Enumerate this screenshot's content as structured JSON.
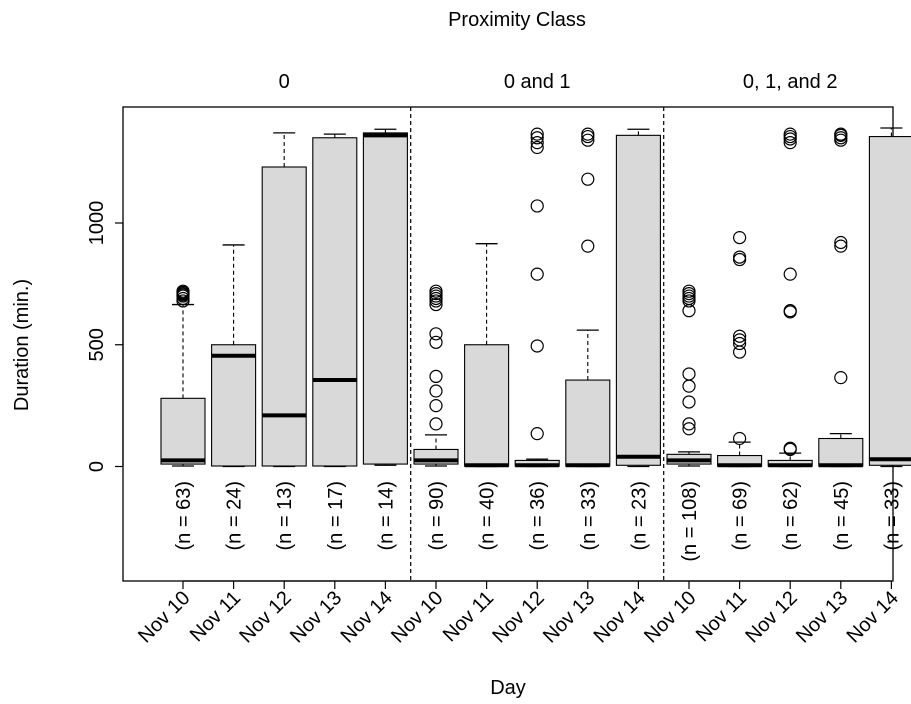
{
  "chart_data": {
    "type": "box",
    "title": "Proximity Class",
    "xlabel": "Day",
    "ylabel": "Duration (min.)",
    "yticks": [
      0,
      500,
      1000
    ],
    "ylim": [
      -470,
      1470
    ],
    "groups": [
      {
        "name": "0",
        "boxes": [
          {
            "day": "Nov 10",
            "n": "(n = 63)",
            "min": 2,
            "q1": 10,
            "median": 25,
            "q3": 280,
            "max": 665,
            "outliers": [
              680,
              690,
              700,
              705,
              710,
              715,
              720
            ]
          },
          {
            "day": "Nov 11",
            "n": "(n = 24)",
            "min": 0,
            "q1": 2,
            "median": 455,
            "q3": 500,
            "max": 910,
            "outliers": []
          },
          {
            "day": "Nov 12",
            "n": "(n = 13)",
            "min": 0,
            "q1": 2,
            "median": 210,
            "q3": 1230,
            "max": 1370,
            "outliers": []
          },
          {
            "day": "Nov 13",
            "n": "(n = 17)",
            "min": 0,
            "q1": 2,
            "median": 355,
            "q3": 1350,
            "max": 1365,
            "outliers": []
          },
          {
            "day": "Nov 14",
            "n": "(n = 14)",
            "min": 5,
            "q1": 10,
            "median": 1360,
            "q3": 1370,
            "max": 1385,
            "outliers": []
          }
        ]
      },
      {
        "name": "0 and 1",
        "boxes": [
          {
            "day": "Nov 10",
            "n": "(n = 90)",
            "min": 2,
            "q1": 10,
            "median": 25,
            "q3": 70,
            "max": 130,
            "outliers": [
              175,
              250,
              310,
              370,
              510,
              545,
              665,
              680,
              690,
              700,
              710,
              720
            ]
          },
          {
            "day": "Nov 11",
            "n": "(n = 40)",
            "min": 0,
            "q1": 2,
            "median": 5,
            "q3": 500,
            "max": 915,
            "outliers": []
          },
          {
            "day": "Nov 12",
            "n": "(n = 36)",
            "min": 0,
            "q1": 2,
            "median": 5,
            "q3": 25,
            "max": 30,
            "outliers": [
              135,
              495,
              790,
              1070,
              1310,
              1330,
              1350,
              1365
            ]
          },
          {
            "day": "Nov 13",
            "n": "(n = 33)",
            "min": 0,
            "q1": 2,
            "median": 5,
            "q3": 355,
            "max": 560,
            "outliers": [
              905,
              1180,
              1340,
              1355,
              1365
            ]
          },
          {
            "day": "Nov 14",
            "n": "(n = 23)",
            "min": 0,
            "q1": 5,
            "median": 40,
            "q3": 1360,
            "max": 1385,
            "outliers": []
          }
        ]
      },
      {
        "name": "0, 1, and 2",
        "boxes": [
          {
            "day": "Nov 10",
            "n": "(n = 108)",
            "min": 2,
            "q1": 10,
            "median": 25,
            "q3": 50,
            "max": 60,
            "outliers": [
              155,
              175,
              265,
              330,
              380,
              640,
              680,
              690,
              700,
              710,
              720
            ]
          },
          {
            "day": "Nov 11",
            "n": "(n = 69)",
            "min": 0,
            "q1": 2,
            "median": 5,
            "q3": 45,
            "max": 100,
            "outliers": [
              115,
              470,
              505,
              520,
              535,
              850,
              860,
              940
            ]
          },
          {
            "day": "Nov 12",
            "n": "(n = 62)",
            "min": 0,
            "q1": 2,
            "median": 5,
            "q3": 25,
            "max": 55,
            "outliers": [
              70,
              75,
              635,
              640,
              790,
              1330,
              1345,
              1355,
              1365
            ]
          },
          {
            "day": "Nov 13",
            "n": "(n = 45)",
            "min": 0,
            "q1": 2,
            "median": 5,
            "q3": 115,
            "max": 135,
            "outliers": [
              365,
              905,
              920,
              1340,
              1350,
              1360,
              1365
            ]
          },
          {
            "day": "Nov 14",
            "n": "(n = 33)",
            "min": 0,
            "q1": 5,
            "median": 30,
            "q3": 1355,
            "max": 1390,
            "outliers": []
          }
        ]
      }
    ],
    "grid": false
  }
}
